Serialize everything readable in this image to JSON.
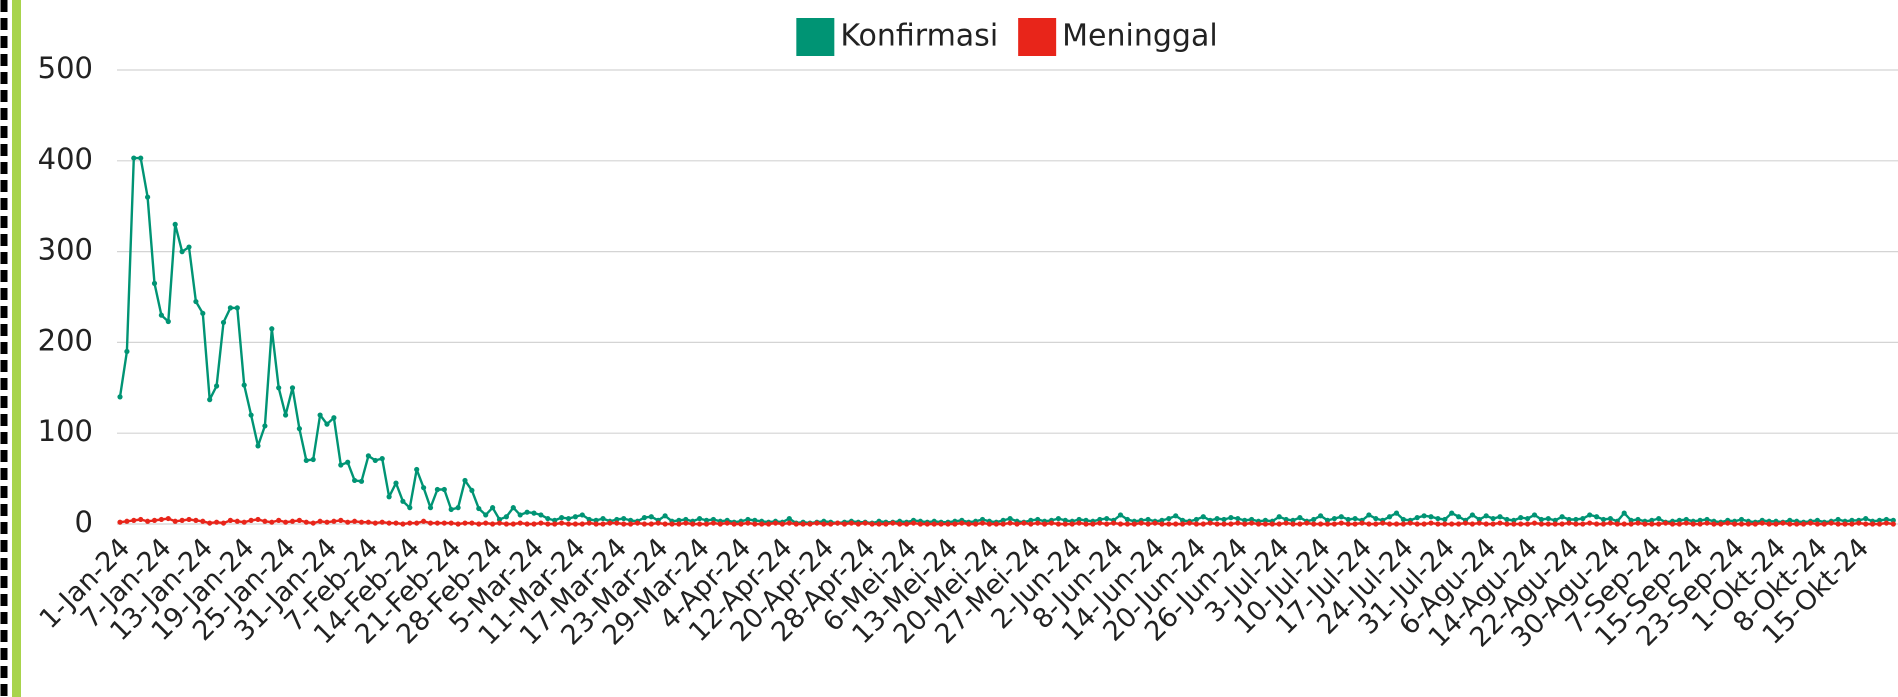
{
  "chart_data": {
    "type": "line",
    "categories": [
      "1-Jan-24",
      null,
      null,
      null,
      null,
      null,
      "7-Jan-24",
      null,
      null,
      null,
      null,
      null,
      "13-Jan-24",
      null,
      null,
      null,
      null,
      null,
      "19-Jan-24",
      null,
      null,
      null,
      null,
      null,
      "25-Jan-24",
      null,
      null,
      null,
      null,
      null,
      "31-Jan-24",
      null,
      null,
      null,
      null,
      null,
      "7-Feb-24",
      null,
      null,
      null,
      null,
      null,
      "14-Feb-24",
      null,
      null,
      null,
      null,
      null,
      "21-Feb-24",
      null,
      null,
      null,
      null,
      null,
      "28-Feb-24",
      null,
      null,
      null,
      null,
      null,
      "5-Mar-24",
      null,
      null,
      null,
      null,
      null,
      "11-Mar-24",
      null,
      null,
      null,
      null,
      null,
      "17-Mar-24",
      null,
      null,
      null,
      null,
      null,
      "23-Mar-24",
      null,
      null,
      null,
      null,
      null,
      "29-Mar-24",
      null,
      null,
      null,
      null,
      null,
      "4-Apr-24",
      null,
      null,
      null,
      null,
      null,
      "12-Apr-24",
      null,
      null,
      null,
      null,
      null,
      "20-Apr-24",
      null,
      null,
      null,
      null,
      null,
      "28-Apr-24",
      null,
      null,
      null,
      null,
      null,
      "6-Mei-24",
      null,
      null,
      null,
      null,
      null,
      "13-Mei-24",
      null,
      null,
      null,
      null,
      null,
      "20-Mei-24",
      null,
      null,
      null,
      null,
      null,
      "27-Mei-24",
      null,
      null,
      null,
      null,
      null,
      "2-Jun-24",
      null,
      null,
      null,
      null,
      null,
      "8-Jun-24",
      null,
      null,
      null,
      null,
      null,
      "14-Jun-24",
      null,
      null,
      null,
      null,
      null,
      "20-Jun-24",
      null,
      null,
      null,
      null,
      null,
      "26-Jun-24",
      null,
      null,
      null,
      null,
      null,
      "3-Jul-24",
      null,
      null,
      null,
      null,
      null,
      "10-Jul-24",
      null,
      null,
      null,
      null,
      null,
      "17-Jul-24",
      null,
      null,
      null,
      null,
      null,
      "24-Jul-24",
      null,
      null,
      null,
      null,
      null,
      "31-Jul-24",
      null,
      null,
      null,
      null,
      null,
      "6-Agu-24",
      null,
      null,
      null,
      null,
      null,
      "14-Agu-24",
      null,
      null,
      null,
      null,
      null,
      "22-Agu-24",
      null,
      null,
      null,
      null,
      null,
      "30-Agu-24",
      null,
      null,
      null,
      null,
      null,
      "7-Sep-24",
      null,
      null,
      null,
      null,
      null,
      "15-Sep-24",
      null,
      null,
      null,
      null,
      null,
      "23-Sep-24",
      null,
      null,
      null,
      null,
      null,
      "1-Okt-24",
      null,
      null,
      null,
      null,
      null,
      "8-Okt-24",
      null,
      null,
      null,
      null,
      null,
      "15-Okt-24",
      null,
      null,
      null,
      null,
      null
    ],
    "series": [
      {
        "name": "Konfirmasi",
        "color": "#009474",
        "values": [
          140,
          190,
          403,
          403,
          360,
          265,
          230,
          223,
          330,
          300,
          305,
          245,
          232,
          137,
          152,
          222,
          238,
          238,
          153,
          120,
          86,
          108,
          215,
          150,
          120,
          150,
          105,
          70,
          71,
          120,
          110,
          117,
          65,
          68,
          48,
          47,
          75,
          70,
          72,
          30,
          45,
          25,
          18,
          60,
          40,
          18,
          38,
          38,
          16,
          18,
          48,
          37,
          17,
          10,
          18,
          5,
          8,
          18,
          10,
          13,
          12,
          10,
          6,
          4,
          7,
          6,
          8,
          10,
          5,
          4,
          6,
          3,
          5,
          6,
          4,
          3,
          7,
          8,
          4,
          9,
          3,
          4,
          5,
          3,
          6,
          4,
          5,
          3,
          4,
          2,
          3,
          5,
          4,
          3,
          2,
          3,
          2,
          6,
          1,
          2,
          1,
          2,
          3,
          2,
          1,
          2,
          3,
          2,
          2,
          1,
          3,
          2,
          2,
          3,
          2,
          4,
          3,
          2,
          3,
          2,
          2,
          3,
          4,
          2,
          3,
          5,
          3,
          2,
          4,
          6,
          3,
          2,
          4,
          5,
          3,
          4,
          6,
          4,
          3,
          5,
          4,
          3,
          5,
          6,
          4,
          10,
          5,
          3,
          4,
          5,
          3,
          4,
          6,
          9,
          4,
          3,
          5,
          8,
          4,
          6,
          5,
          7,
          6,
          4,
          5,
          3,
          4,
          3,
          8,
          5,
          4,
          7,
          3,
          5,
          9,
          4,
          6,
          8,
          5,
          6,
          4,
          10,
          6,
          4,
          8,
          12,
          5,
          4,
          7,
          9,
          8,
          6,
          5,
          12,
          8,
          4,
          10,
          5,
          9,
          6,
          8,
          5,
          4,
          7,
          6,
          10,
          5,
          6,
          4,
          8,
          5,
          5,
          6,
          10,
          8,
          5,
          6,
          3,
          12,
          4,
          5,
          3,
          4,
          6,
          2,
          3,
          4,
          5,
          3,
          4,
          5,
          3,
          2,
          4,
          3,
          5,
          3,
          2,
          4,
          3,
          3,
          2,
          4,
          3,
          2,
          3,
          4,
          2,
          3,
          5,
          3,
          4,
          4,
          6,
          3,
          4,
          5,
          4
        ]
      },
      {
        "name": "Meninggal",
        "color": "#e8251a",
        "values": [
          2,
          3,
          4,
          5,
          3,
          4,
          5,
          6,
          3,
          4,
          5,
          4,
          3,
          1,
          2,
          1,
          4,
          3,
          2,
          4,
          5,
          3,
          2,
          4,
          2,
          3,
          4,
          2,
          1,
          3,
          2,
          3,
          4,
          2,
          3,
          2,
          2,
          1,
          2,
          1,
          1,
          0,
          1,
          1,
          3,
          1,
          1,
          1,
          1,
          0,
          1,
          1,
          0,
          1,
          0,
          1,
          0,
          0,
          1,
          0,
          0,
          1,
          0,
          0,
          1,
          0,
          0,
          0,
          1,
          0,
          0,
          1,
          1,
          0,
          0,
          1,
          0,
          0,
          1,
          0,
          0,
          0,
          1,
          0,
          0,
          0,
          1,
          0,
          1,
          0,
          0,
          1,
          0,
          0,
          0,
          1,
          0,
          1,
          0,
          0,
          0,
          1,
          0,
          0,
          1,
          0,
          1,
          0,
          1,
          0,
          0,
          0,
          1,
          0,
          0,
          1,
          0,
          0,
          0,
          0,
          0,
          0,
          1,
          0,
          0,
          1,
          0,
          0,
          0,
          1,
          0,
          1,
          0,
          1,
          0,
          1,
          0,
          0,
          0,
          1,
          0,
          0,
          1,
          0,
          1,
          0,
          0,
          0,
          1,
          0,
          1,
          0,
          0,
          0,
          0,
          1,
          0,
          0,
          1,
          0,
          0,
          0,
          1,
          0,
          1,
          0,
          0,
          0,
          0,
          1,
          0,
          0,
          1,
          0,
          0,
          0,
          0,
          1,
          0,
          0,
          1,
          0,
          0,
          1,
          0,
          0,
          0,
          1,
          0,
          0,
          1,
          0,
          0,
          0,
          0,
          1,
          0,
          1,
          0,
          0,
          1,
          0,
          0,
          0,
          0,
          1,
          0,
          0,
          0,
          0,
          1,
          0,
          0,
          1,
          0,
          0,
          1,
          0,
          0,
          0,
          1,
          0,
          0,
          0,
          1,
          0,
          0,
          1,
          0,
          0,
          1,
          0,
          0,
          1,
          0,
          0,
          0,
          0,
          1,
          0,
          0,
          1,
          0,
          0,
          0,
          1,
          0,
          0,
          1,
          0,
          0,
          0,
          1,
          0,
          0,
          0,
          1,
          0
        ]
      }
    ],
    "ylim": [
      0,
      500
    ],
    "yticks": [
      0,
      100,
      200,
      300,
      400,
      500
    ],
    "grid": true,
    "legend": "top"
  }
}
